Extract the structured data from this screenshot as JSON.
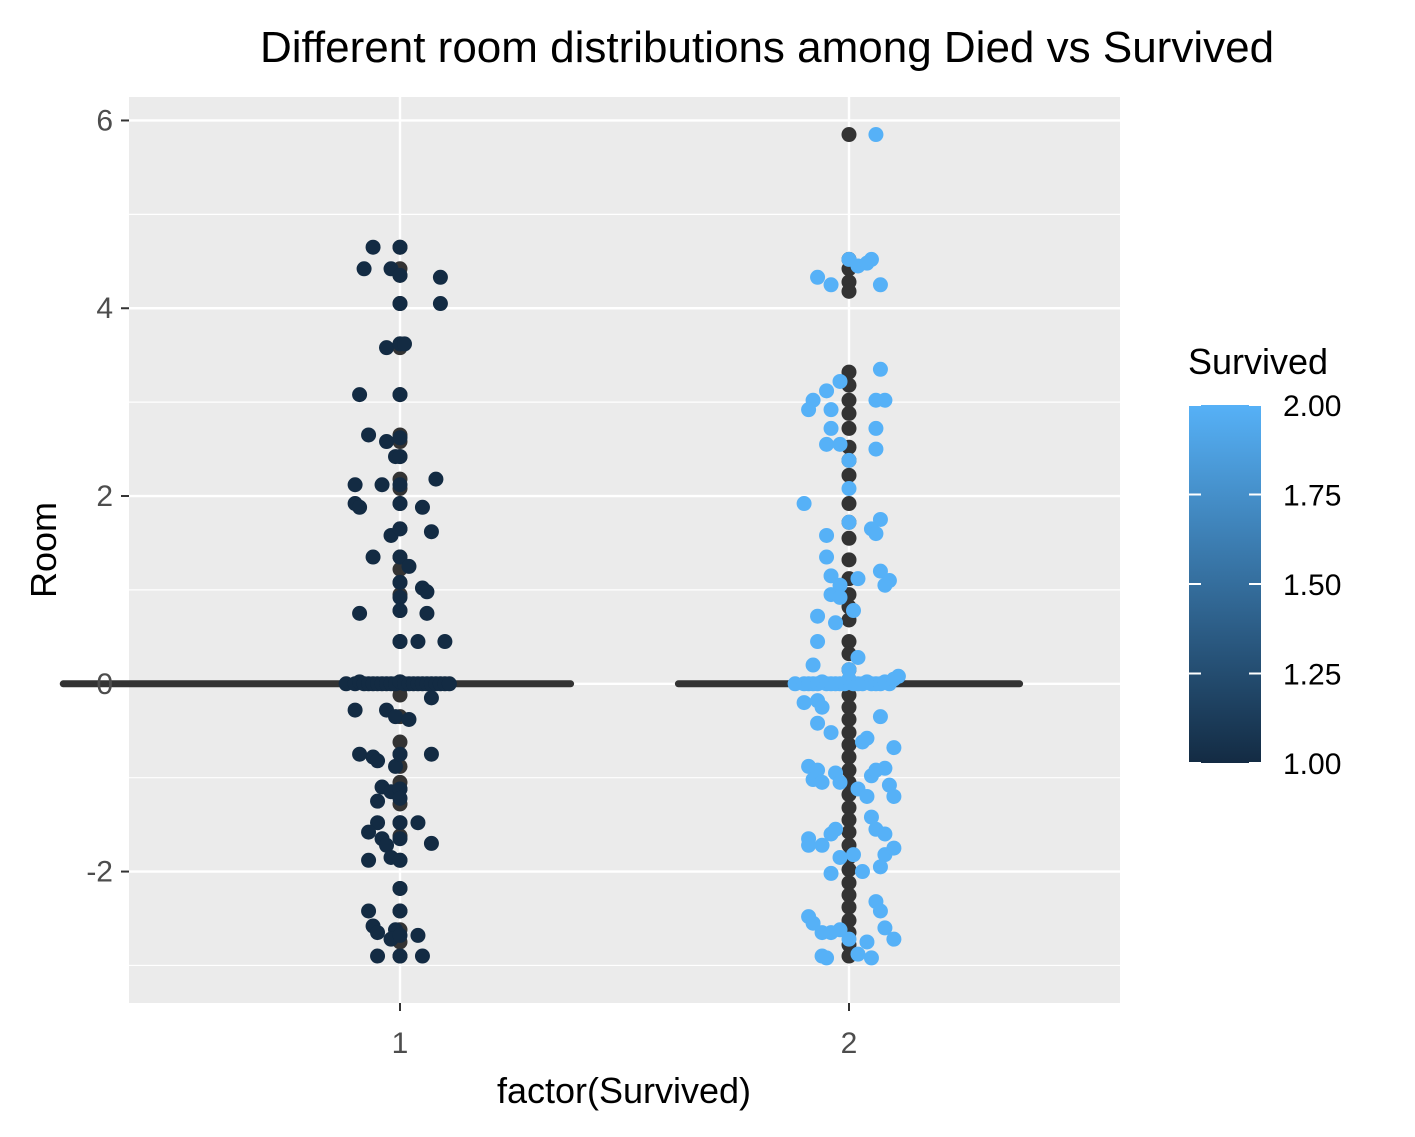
{
  "chart_data": {
    "type": "scatter",
    "title": "Different room distributions among Died vs Survived",
    "xlabel": "factor(Survived)",
    "ylabel": "Room",
    "categories": [
      "1",
      "2"
    ],
    "ylim": [
      -3.4,
      6.25
    ],
    "y_ticks": [
      "-2",
      "0",
      "2",
      "4",
      "6"
    ],
    "grid": true,
    "colors": {
      "panel_bg": "#ebebeb",
      "grid": "#ffffff",
      "line_series": "#333333",
      "low": "#132b43",
      "high": "#56b1f7"
    },
    "line_series": {
      "points": [
        {
          "x": 1,
          "y": [
            4.65,
            4.42,
            4.35,
            4.05,
            3.62,
            3.58,
            3.08,
            2.65,
            2.58,
            2.42,
            2.18,
            2.08,
            1.92,
            1.65,
            1.35,
            1.22,
            1.08,
            0.95,
            0.78,
            0.45,
            0.02,
            0.0,
            -0.05,
            -0.12,
            -0.35,
            -0.62,
            -0.75,
            -0.88,
            -1.05,
            -1.12,
            -1.28,
            -1.48,
            -1.62,
            -1.88,
            -2.18,
            -2.42,
            -2.62,
            -2.75,
            -2.9
          ]
        },
        {
          "x": 2,
          "y": [
            5.85,
            4.52,
            4.42,
            4.28,
            4.18,
            3.32,
            3.18,
            3.02,
            2.88,
            2.72,
            2.52,
            2.38,
            2.22,
            1.92,
            1.72,
            1.55,
            1.32,
            1.12,
            0.95,
            0.82,
            0.68,
            0.45,
            0.32,
            0.15,
            0.02,
            -0.12,
            -0.25,
            -0.38,
            -0.52,
            -0.65,
            -0.78,
            -0.92,
            -1.05,
            -1.18,
            -1.32,
            -1.45,
            -1.58,
            -1.72,
            -1.85,
            -1.98,
            -2.12,
            -2.25,
            -2.38,
            -2.52,
            -2.65,
            -2.78,
            -2.9
          ]
        }
      ]
    },
    "horizontal_lines": [
      {
        "x_from": 0.25,
        "x_to": 1.38,
        "y": 0
      },
      {
        "x_from": 1.62,
        "x_to": 2.38,
        "y": 0
      }
    ],
    "series": [
      {
        "x_group": 1,
        "survived": 1,
        "points": [
          [
            -0.06,
            4.65
          ],
          [
            0.0,
            4.65
          ],
          [
            -0.08,
            4.42
          ],
          [
            -0.02,
            4.42
          ],
          [
            0.0,
            4.35
          ],
          [
            0.09,
            4.33
          ],
          [
            0.0,
            4.05
          ],
          [
            0.09,
            4.05
          ],
          [
            -0.03,
            3.58
          ],
          [
            0.0,
            3.62
          ],
          [
            0.01,
            3.62
          ],
          [
            -0.09,
            3.08
          ],
          [
            0.0,
            3.08
          ],
          [
            -0.07,
            2.65
          ],
          [
            -0.03,
            2.58
          ],
          [
            0.0,
            2.62
          ],
          [
            -0.01,
            2.42
          ],
          [
            0.0,
            2.42
          ],
          [
            -0.1,
            2.12
          ],
          [
            -0.04,
            2.12
          ],
          [
            0.0,
            2.12
          ],
          [
            0.08,
            2.18
          ],
          [
            -0.1,
            1.92
          ],
          [
            -0.09,
            1.88
          ],
          [
            0.0,
            1.92
          ],
          [
            0.05,
            1.88
          ],
          [
            -0.02,
            1.58
          ],
          [
            0.0,
            1.65
          ],
          [
            0.07,
            1.62
          ],
          [
            -0.06,
            1.35
          ],
          [
            0.0,
            1.35
          ],
          [
            0.02,
            1.25
          ],
          [
            0.0,
            1.08
          ],
          [
            0.05,
            1.02
          ],
          [
            0.06,
            0.98
          ],
          [
            0.0,
            0.92
          ],
          [
            -0.09,
            0.75
          ],
          [
            0.0,
            0.78
          ],
          [
            0.06,
            0.75
          ],
          [
            0.0,
            0.45
          ],
          [
            0.04,
            0.45
          ],
          [
            0.1,
            0.45
          ],
          [
            -0.12,
            0.0
          ],
          [
            -0.1,
            0.0
          ],
          [
            -0.09,
            0.02
          ],
          [
            -0.08,
            0.0
          ],
          [
            -0.07,
            0.0
          ],
          [
            -0.06,
            0.0
          ],
          [
            -0.05,
            0.0
          ],
          [
            -0.04,
            0.0
          ],
          [
            -0.03,
            0.0
          ],
          [
            -0.02,
            0.0
          ],
          [
            -0.01,
            0.0
          ],
          [
            0.0,
            0.02
          ],
          [
            0.01,
            0.0
          ],
          [
            0.02,
            0.0
          ],
          [
            0.03,
            0.0
          ],
          [
            0.04,
            0.0
          ],
          [
            0.05,
            0.0
          ],
          [
            0.06,
            0.0
          ],
          [
            0.07,
            0.0
          ],
          [
            0.08,
            0.0
          ],
          [
            0.09,
            0.0
          ],
          [
            0.1,
            0.0
          ],
          [
            0.11,
            0.0
          ],
          [
            -0.1,
            -0.28
          ],
          [
            -0.03,
            -0.28
          ],
          [
            -0.01,
            -0.35
          ],
          [
            0.02,
            -0.38
          ],
          [
            0.07,
            -0.15
          ],
          [
            -0.09,
            -0.75
          ],
          [
            -0.06,
            -0.78
          ],
          [
            -0.05,
            -0.82
          ],
          [
            -0.01,
            -0.88
          ],
          [
            0.0,
            -0.75
          ],
          [
            0.07,
            -0.75
          ],
          [
            -0.04,
            -1.1
          ],
          [
            -0.02,
            -1.15
          ],
          [
            -0.05,
            -1.25
          ],
          [
            0.0,
            -1.12
          ],
          [
            0.0,
            -1.22
          ],
          [
            -0.05,
            -1.48
          ],
          [
            -0.07,
            -1.58
          ],
          [
            -0.04,
            -1.65
          ],
          [
            -0.03,
            -1.72
          ],
          [
            0.0,
            -1.48
          ],
          [
            0.0,
            -1.65
          ],
          [
            0.04,
            -1.48
          ],
          [
            0.07,
            -1.7
          ],
          [
            -0.07,
            -1.88
          ],
          [
            -0.02,
            -1.85
          ],
          [
            0.0,
            -1.88
          ],
          [
            0.0,
            -2.18
          ],
          [
            -0.07,
            -2.42
          ],
          [
            -0.06,
            -2.58
          ],
          [
            -0.05,
            -2.65
          ],
          [
            -0.01,
            -2.62
          ],
          [
            0.0,
            -2.42
          ],
          [
            -0.02,
            -2.72
          ],
          [
            0.0,
            -2.68
          ],
          [
            0.04,
            -2.68
          ],
          [
            -0.05,
            -2.9
          ],
          [
            0.0,
            -2.9
          ],
          [
            0.05,
            -2.9
          ]
        ]
      },
      {
        "x_group": 2,
        "survived": 2,
        "points": [
          [
            0.06,
            5.85
          ],
          [
            -0.07,
            4.33
          ],
          [
            -0.04,
            4.25
          ],
          [
            0.0,
            4.52
          ],
          [
            0.02,
            4.45
          ],
          [
            0.04,
            4.48
          ],
          [
            0.05,
            4.52
          ],
          [
            0.07,
            4.25
          ],
          [
            -0.05,
            3.12
          ],
          [
            -0.02,
            3.22
          ],
          [
            -0.04,
            2.92
          ],
          [
            -0.08,
            3.02
          ],
          [
            -0.09,
            2.92
          ],
          [
            -0.05,
            2.55
          ],
          [
            -0.04,
            2.72
          ],
          [
            -0.02,
            2.55
          ],
          [
            0.0,
            2.38
          ],
          [
            0.07,
            3.35
          ],
          [
            0.06,
            3.02
          ],
          [
            0.08,
            3.02
          ],
          [
            0.06,
            2.72
          ],
          [
            0.06,
            2.5
          ],
          [
            -0.1,
            1.92
          ],
          [
            0.0,
            2.08
          ],
          [
            0.0,
            1.72
          ],
          [
            -0.05,
            1.58
          ],
          [
            -0.05,
            1.35
          ],
          [
            -0.04,
            1.15
          ],
          [
            -0.02,
            1.05
          ],
          [
            0.02,
            1.12
          ],
          [
            0.05,
            1.65
          ],
          [
            0.07,
            1.75
          ],
          [
            0.06,
            1.6
          ],
          [
            0.07,
            1.2
          ],
          [
            0.09,
            1.1
          ],
          [
            0.08,
            1.05
          ],
          [
            -0.07,
            0.45
          ],
          [
            -0.04,
            0.95
          ],
          [
            -0.02,
            0.92
          ],
          [
            -0.07,
            0.72
          ],
          [
            -0.03,
            0.65
          ],
          [
            -0.08,
            0.2
          ],
          [
            0.01,
            0.78
          ],
          [
            0.02,
            0.28
          ],
          [
            0.0,
            0.15
          ],
          [
            -0.12,
            0.0
          ],
          [
            -0.1,
            0.0
          ],
          [
            -0.09,
            0.0
          ],
          [
            -0.08,
            0.0
          ],
          [
            -0.07,
            0.0
          ],
          [
            -0.06,
            0.02
          ],
          [
            -0.05,
            0.0
          ],
          [
            -0.04,
            0.0
          ],
          [
            -0.03,
            0.0
          ],
          [
            -0.02,
            0.0
          ],
          [
            -0.01,
            0.0
          ],
          [
            0.0,
            0.05
          ],
          [
            0.01,
            0.0
          ],
          [
            0.02,
            0.0
          ],
          [
            0.03,
            0.0
          ],
          [
            0.04,
            0.02
          ],
          [
            0.05,
            0.0
          ],
          [
            0.06,
            0.0
          ],
          [
            0.07,
            0.0
          ],
          [
            0.08,
            0.02
          ],
          [
            0.09,
            0.0
          ],
          [
            0.1,
            0.05
          ],
          [
            0.11,
            0.08
          ],
          [
            -0.07,
            -0.18
          ],
          [
            -0.06,
            -0.25
          ],
          [
            -0.07,
            -0.42
          ],
          [
            -0.04,
            -0.52
          ],
          [
            -0.1,
            -0.2
          ],
          [
            0.07,
            -0.35
          ],
          [
            0.03,
            -0.62
          ],
          [
            0.04,
            -0.58
          ],
          [
            0.1,
            -0.68
          ],
          [
            -0.09,
            -0.88
          ],
          [
            -0.07,
            -0.92
          ],
          [
            -0.08,
            -1.02
          ],
          [
            -0.06,
            -1.05
          ],
          [
            -0.03,
            -0.95
          ],
          [
            -0.02,
            -1.05
          ],
          [
            0.02,
            -1.12
          ],
          [
            0.05,
            -0.98
          ],
          [
            0.06,
            -0.92
          ],
          [
            0.08,
            -0.9
          ],
          [
            0.09,
            -1.08
          ],
          [
            0.1,
            -1.2
          ],
          [
            0.04,
            -1.2
          ],
          [
            -0.09,
            -1.65
          ],
          [
            -0.09,
            -1.72
          ],
          [
            -0.06,
            -1.72
          ],
          [
            -0.04,
            -1.6
          ],
          [
            -0.03,
            -1.55
          ],
          [
            -0.02,
            -1.85
          ],
          [
            -0.04,
            -2.02
          ],
          [
            0.01,
            -1.82
          ],
          [
            0.03,
            -2.0
          ],
          [
            0.05,
            -1.42
          ],
          [
            0.06,
            -1.55
          ],
          [
            0.08,
            -1.6
          ],
          [
            0.08,
            -1.82
          ],
          [
            0.07,
            -1.95
          ],
          [
            0.1,
            -1.75
          ],
          [
            -0.09,
            -2.48
          ],
          [
            -0.08,
            -2.55
          ],
          [
            -0.06,
            -2.65
          ],
          [
            -0.04,
            -2.65
          ],
          [
            -0.02,
            -2.62
          ],
          [
            0.0,
            -2.72
          ],
          [
            0.04,
            -2.75
          ],
          [
            0.06,
            -2.32
          ],
          [
            0.07,
            -2.42
          ],
          [
            0.08,
            -2.6
          ],
          [
            0.1,
            -2.72
          ],
          [
            -0.06,
            -2.9
          ],
          [
            -0.05,
            -2.92
          ],
          [
            0.02,
            -2.88
          ],
          [
            0.05,
            -2.92
          ]
        ]
      }
    ],
    "legend": {
      "title": "Survived",
      "position": "right",
      "gradient_from": 1.0,
      "gradient_to": 2.0,
      "labels": [
        "2.00",
        "1.75",
        "1.50",
        "1.25",
        "1.00"
      ]
    }
  }
}
